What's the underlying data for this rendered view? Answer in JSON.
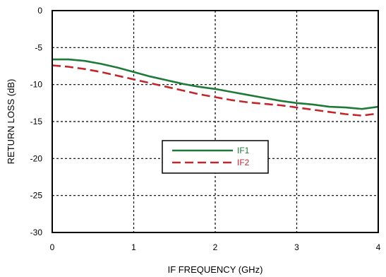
{
  "chart_data": {
    "type": "line",
    "xlabel": "IF FREQUENCY (GHz)",
    "ylabel": "RETURN LOSS (dB)",
    "xlim": [
      0,
      4
    ],
    "ylim": [
      -30,
      0
    ],
    "xticks": [
      0,
      1,
      2,
      3,
      4
    ],
    "yticks": [
      0,
      -5,
      -10,
      -15,
      -20,
      -25,
      -30
    ],
    "x_tick_labels": [
      "0",
      "1",
      "2",
      "3",
      "4"
    ],
    "y_tick_labels": [
      "0",
      "-5",
      "-10",
      "-15",
      "-20",
      "-25",
      "-30"
    ],
    "grid": true,
    "legend_position": "center",
    "series": [
      {
        "name": "IF1",
        "color": "#1f7a3a",
        "style": "solid",
        "x": [
          0,
          0.2,
          0.4,
          0.6,
          0.8,
          1.0,
          1.2,
          1.4,
          1.6,
          1.8,
          2.0,
          2.2,
          2.4,
          2.6,
          2.8,
          3.0,
          3.2,
          3.4,
          3.6,
          3.8,
          4.0
        ],
        "y": [
          -6.6,
          -6.6,
          -6.8,
          -7.2,
          -7.7,
          -8.3,
          -8.9,
          -9.4,
          -9.9,
          -10.3,
          -10.6,
          -11.0,
          -11.4,
          -11.8,
          -12.2,
          -12.5,
          -12.7,
          -13.0,
          -13.1,
          -13.3,
          -13.0
        ]
      },
      {
        "name": "IF2",
        "color": "#c0282d",
        "style": "dashed",
        "x": [
          0,
          0.2,
          0.4,
          0.6,
          0.8,
          1.0,
          1.2,
          1.4,
          1.6,
          1.8,
          2.0,
          2.2,
          2.4,
          2.6,
          2.8,
          3.0,
          3.2,
          3.4,
          3.6,
          3.8,
          4.0
        ],
        "y": [
          -7.4,
          -7.6,
          -7.9,
          -8.3,
          -8.8,
          -9.3,
          -9.8,
          -10.3,
          -10.8,
          -11.3,
          -11.7,
          -12.1,
          -12.4,
          -12.6,
          -12.8,
          -13.1,
          -13.4,
          -13.7,
          -14.0,
          -14.2,
          -13.9
        ]
      }
    ]
  }
}
